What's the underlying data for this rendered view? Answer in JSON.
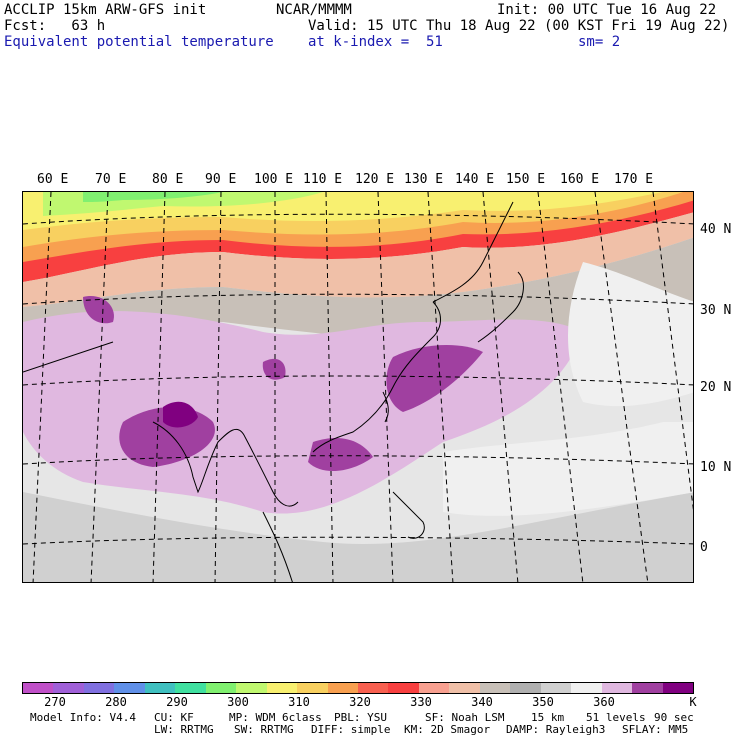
{
  "header": {
    "line1_left": "ACCLIP 15km ARW-GFS init",
    "line1_mid": "NCAR/MMMM",
    "line1_right": "Init: 00 UTC Tue 16 Aug 22",
    "line2_left": "Fcst:   63 h",
    "line2_right": "Valid: 15 UTC Thu 18 Aug 22 (00 KST Fri 19 Aug 22)",
    "line3_left": "Equivalent potential temperature",
    "line3_mid": "at k-index =  51",
    "line3_right": "sm= 2"
  },
  "map": {
    "lon_labels": [
      "60 E",
      "70 E",
      "80 E",
      "90 E",
      "100 E",
      "110 E",
      "120 E",
      "130 E",
      "140 E",
      "150 E",
      "160 E",
      "170 E"
    ],
    "lat_labels": [
      "40 N",
      "30 N",
      "20 N",
      "10 N",
      "0"
    ]
  },
  "colorbar": {
    "colors": [
      "#c050c8",
      "#a060d8",
      "#8070e0",
      "#6090e8",
      "#40c0c0",
      "#40e0a0",
      "#80f070",
      "#c0f870",
      "#f8f070",
      "#f8d060",
      "#f8a050",
      "#f86050",
      "#f84040",
      "#f8a090",
      "#f0c0a8",
      "#c8c0b8",
      "#b0b0b0",
      "#d0d0d0",
      "#f0f0f0",
      "#e0b8e0",
      "#a040a0",
      "#800080"
    ],
    "tick_labels": [
      "270",
      "280",
      "290",
      "300",
      "310",
      "320",
      "330",
      "340",
      "350",
      "360"
    ],
    "unit": "K"
  },
  "footer": {
    "line1": [
      "Model Info: V4.4",
      "CU: KF",
      "MP: WDM 6class",
      "PBL: YSU",
      "SF: Noah LSM",
      "15 km",
      "51 levels",
      "90 sec"
    ],
    "line2": [
      "LW: RRTMG",
      "SW: RRTMG",
      "DIFF: simple",
      "KM: 2D Smagor",
      "DAMP: Rayleigh3",
      "SFLAY: MM5"
    ]
  }
}
